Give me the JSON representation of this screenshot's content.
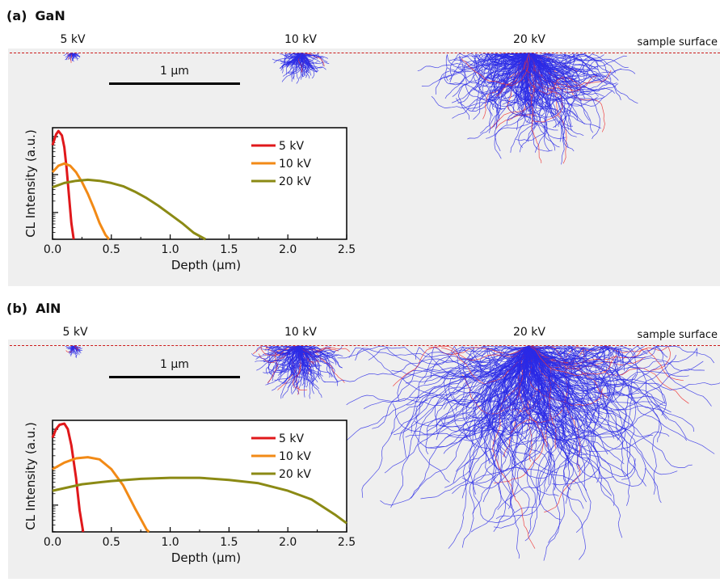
{
  "surface_label": "sample surface",
  "scale_label": "1 µm",
  "panels": [
    {
      "letter": "(a)",
      "material": "GaN",
      "kv_labels": [
        "5 kV",
        "10 kV",
        "20 kV"
      ],
      "chart_data": {
        "type": "line",
        "xlabel": "Depth (µm)",
        "ylabel": "CL Intensity (a.u.)",
        "xlim": [
          0,
          2.5
        ],
        "xticks": [
          "0.0",
          "0.5",
          "1.0",
          "1.5",
          "2.0",
          "2.5"
        ],
        "grid": false,
        "legend": "top-right",
        "series": [
          {
            "name": "5 kV",
            "color": "#e0181b",
            "x": [
              0,
              0.03,
              0.05,
              0.08,
              0.1,
              0.12,
              0.14,
              0.16,
              0.18
            ],
            "y": [
              0.87,
              0.97,
              1.0,
              0.96,
              0.85,
              0.65,
              0.4,
              0.15,
              0
            ]
          },
          {
            "name": "10 kV",
            "color": "#f28a16",
            "x": [
              0,
              0.05,
              0.1,
              0.15,
              0.2,
              0.25,
              0.3,
              0.35,
              0.4,
              0.45,
              0.48
            ],
            "y": [
              0.62,
              0.68,
              0.7,
              0.68,
              0.62,
              0.53,
              0.42,
              0.29,
              0.15,
              0.04,
              0
            ]
          },
          {
            "name": "20 kV",
            "color": "#8b8a14",
            "x": [
              0,
              0.1,
              0.2,
              0.3,
              0.4,
              0.5,
              0.6,
              0.7,
              0.8,
              0.9,
              1.0,
              1.1,
              1.2,
              1.3
            ],
            "y": [
              0.48,
              0.52,
              0.54,
              0.55,
              0.54,
              0.52,
              0.49,
              0.44,
              0.38,
              0.31,
              0.23,
              0.15,
              0.06,
              0
            ]
          }
        ]
      }
    },
    {
      "letter": "(b)",
      "material": "AlN",
      "kv_labels": [
        "5 kV",
        "10 kV",
        "20 kV"
      ],
      "chart_data": {
        "type": "line",
        "xlabel": "Depth (µm)",
        "ylabel": "CL Intensity (a.u.)",
        "xlim": [
          0,
          2.5
        ],
        "xticks": [
          "0.0",
          "0.5",
          "1.0",
          "1.5",
          "2.0",
          "2.5"
        ],
        "grid": false,
        "legend": "top-right",
        "series": [
          {
            "name": "5 kV",
            "color": "#e0181b",
            "x": [
              0,
              0.03,
              0.06,
              0.1,
              0.13,
              0.16,
              0.2,
              0.23,
              0.26
            ],
            "y": [
              0.87,
              0.95,
              0.99,
              1.0,
              0.95,
              0.8,
              0.5,
              0.2,
              0
            ]
          },
          {
            "name": "10 kV",
            "color": "#f28a16",
            "x": [
              0,
              0.1,
              0.2,
              0.3,
              0.4,
              0.5,
              0.6,
              0.7,
              0.8,
              0.82
            ],
            "y": [
              0.58,
              0.64,
              0.68,
              0.69,
              0.67,
              0.58,
              0.43,
              0.22,
              0.02,
              0
            ]
          },
          {
            "name": "20 kV",
            "color": "#8b8a14",
            "x": [
              0,
              0.25,
              0.5,
              0.75,
              1.0,
              1.25,
              1.5,
              1.75,
              2.0,
              2.2,
              2.4,
              2.5
            ],
            "y": [
              0.38,
              0.44,
              0.47,
              0.49,
              0.5,
              0.5,
              0.48,
              0.45,
              0.38,
              0.3,
              0.16,
              0.08
            ]
          }
        ]
      }
    }
  ]
}
